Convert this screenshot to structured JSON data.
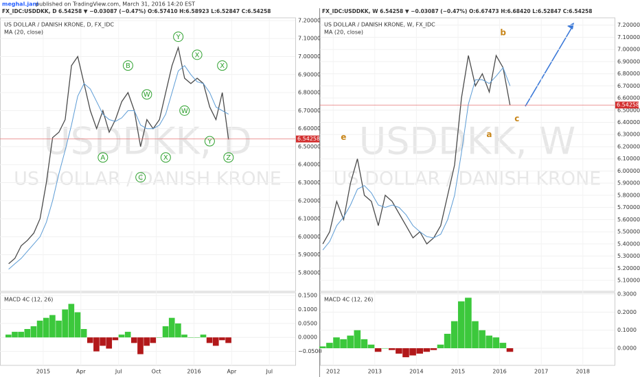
{
  "author": "meghal.jani",
  "published": "published on TradingView.com, March 31, 2016 14:20 EST",
  "chart_data": [
    {
      "type": "line",
      "header": "FX_IDC:USDDKK, D 6.54258 ▼ −0.03087 (−0.47%) O:6.57410 H:6.58923 L:6.52847 C:6.54258",
      "watermark_symbol": "USDDKK, D",
      "watermark_name": "US DOLLAR / DANISH KRONE",
      "categories": [
        null,
        null,
        null,
        null,
        null,
        null,
        "2015",
        null,
        null,
        null,
        null,
        null,
        "Apr",
        null,
        null,
        null,
        null,
        null,
        "Jul",
        null,
        null,
        null,
        null,
        null,
        "Oct",
        null,
        null,
        null,
        null,
        null,
        "2016",
        null,
        null,
        null,
        null,
        null,
        "Apr",
        null,
        null,
        null,
        null,
        null,
        "Jul",
        null,
        null,
        null
      ],
      "series": [
        {
          "name": "US DOLLAR / DANISH KRONE, D, FX_IDC",
          "color": "#4a4a4a",
          "values": [
            5.85,
            5.88,
            5.95,
            5.98,
            6.02,
            6.1,
            6.3,
            6.55,
            6.58,
            6.65,
            6.95,
            7.0,
            6.85,
            6.7,
            6.6,
            6.7,
            6.58,
            6.65,
            6.75,
            6.8,
            6.7,
            6.5,
            6.65,
            6.6,
            6.65,
            6.8,
            6.95,
            7.05,
            6.88,
            6.85,
            6.88,
            6.85,
            6.72,
            6.65,
            6.8,
            6.54,
            null,
            null,
            null,
            null,
            null,
            null,
            null,
            null,
            null,
            null
          ]
        },
        {
          "name": "MA (20, close)",
          "color": "#5b9bd5",
          "values": [
            5.82,
            5.85,
            5.88,
            5.92,
            5.96,
            6.0,
            6.08,
            6.2,
            6.35,
            6.48,
            6.62,
            6.78,
            6.85,
            6.82,
            6.75,
            6.68,
            6.65,
            6.64,
            6.66,
            6.7,
            6.7,
            6.62,
            6.6,
            6.6,
            6.62,
            6.68,
            6.8,
            6.92,
            6.95,
            6.9,
            6.86,
            6.85,
            6.8,
            6.72,
            6.7,
            6.68,
            null,
            null,
            null,
            null,
            null,
            null,
            null,
            null,
            null,
            null
          ]
        },
        {
          "name": "MACD 4C (12, 26)",
          "type": "bar",
          "axis": "y2",
          "color": "#3cc83c",
          "negative_color": "#b2181a",
          "values": [
            0.01,
            0.02,
            0.02,
            0.03,
            0.04,
            0.06,
            0.07,
            0.08,
            0.06,
            0.1,
            0.12,
            0.09,
            0.03,
            -0.02,
            -0.05,
            -0.03,
            -0.04,
            -0.01,
            0.01,
            0.02,
            -0.02,
            -0.06,
            -0.03,
            -0.02,
            0.0,
            0.04,
            0.07,
            0.05,
            0.01,
            0.0,
            0.0,
            0.01,
            -0.02,
            -0.03,
            -0.01,
            -0.02,
            null,
            null,
            null,
            null,
            null,
            null,
            null,
            null,
            null,
            null
          ]
        }
      ],
      "ylim": [
        5.697,
        7.215
      ],
      "yticks": [
        {
          "value": 5.8,
          "label": "5.80000"
        },
        {
          "value": 5.9,
          "label": "5.90000"
        },
        {
          "value": 6.0,
          "label": "6.00000"
        },
        {
          "value": 6.1,
          "label": "6.10000"
        },
        {
          "value": 6.2,
          "label": "6.20000"
        },
        {
          "value": 6.3,
          "label": "6.30000"
        },
        {
          "value": 6.4,
          "label": "6.40000"
        },
        {
          "value": 6.5,
          "label": "6.50000"
        },
        {
          "value": 6.6,
          "label": "6.60000"
        },
        {
          "value": 6.7,
          "label": "6.70000"
        },
        {
          "value": 6.8,
          "label": "6.80000"
        },
        {
          "value": 6.9,
          "label": "6.90000"
        },
        {
          "value": 7.0,
          "label": "7.00000"
        },
        {
          "value": 7.1,
          "label": "7.10000"
        },
        {
          "value": 7.2,
          "label": "7.20000"
        }
      ],
      "y2lim": [
        -0.1,
        0.16
      ],
      "y2ticks": [
        {
          "value": 0.15,
          "label": "0.1500"
        },
        {
          "value": 0.1,
          "label": "0.1000"
        },
        {
          "value": 0.05,
          "label": "0.0500"
        },
        {
          "value": 0,
          "label": "0.0000"
        },
        {
          "value": -0.05,
          "label": "−0.0500"
        }
      ],
      "last_price": 6.54258,
      "annotation_style": "circle",
      "annotation_color": "#2ca02c",
      "annotations": [
        {
          "label": "A",
          "at": 15,
          "y": 6.44
        },
        {
          "label": "B",
          "at": 19,
          "y": 6.95
        },
        {
          "label": "C",
          "at": 21,
          "y": 6.33
        },
        {
          "label": "W",
          "at": 22,
          "y": 6.79
        },
        {
          "label": "X",
          "at": 25,
          "y": 6.44
        },
        {
          "label": "Y",
          "at": 27,
          "y": 7.11
        },
        {
          "label": "W",
          "at": 28,
          "y": 6.7
        },
        {
          "label": "X",
          "at": 30,
          "y": 7.01
        },
        {
          "label": "Y",
          "at": 32,
          "y": 6.53
        },
        {
          "label": "X",
          "at": 34,
          "y": 6.95
        },
        {
          "label": "Z",
          "at": 35,
          "y": 6.44
        }
      ]
    },
    {
      "type": "line",
      "header": "FX_IDC:USDDKK, W 6.54258 ▼ −0.03087 (−0.47%) O:6.67473 H:6.68420 L:6.52847 C:6.54258",
      "watermark_symbol": "USDDKK, W",
      "watermark_name": "US DOLLAR / DANISH KRONE",
      "categories": [
        null,
        null,
        "2012",
        null,
        null,
        null,
        null,
        null,
        "2013",
        null,
        null,
        null,
        null,
        null,
        "2014",
        null,
        null,
        null,
        null,
        null,
        "2015",
        null,
        null,
        null,
        null,
        null,
        "2016",
        null,
        null,
        null,
        null,
        null,
        "2017",
        null,
        null,
        null,
        null,
        null,
        "2018",
        null,
        null,
        null
      ],
      "series": [
        {
          "name": "US DOLLAR / DANISH KRONE, W, FX_IDC",
          "color": "#4a4a4a",
          "values": [
            5.4,
            5.5,
            5.75,
            5.6,
            5.9,
            6.1,
            5.8,
            5.75,
            5.55,
            5.8,
            5.75,
            5.65,
            5.55,
            5.45,
            5.5,
            5.4,
            5.45,
            5.55,
            5.8,
            6.05,
            6.6,
            6.95,
            6.7,
            6.8,
            6.65,
            6.95,
            6.85,
            6.54,
            null,
            null,
            null,
            null,
            null,
            null,
            null,
            null,
            null,
            null,
            null,
            null,
            null,
            null
          ]
        },
        {
          "name": "MA (20, close)",
          "color": "#5b9bd5",
          "values": [
            5.35,
            5.42,
            5.55,
            5.62,
            5.72,
            5.85,
            5.88,
            5.82,
            5.72,
            5.7,
            5.72,
            5.7,
            5.64,
            5.55,
            5.5,
            5.46,
            5.45,
            5.48,
            5.6,
            5.8,
            6.15,
            6.55,
            6.75,
            6.75,
            6.72,
            6.78,
            6.85,
            6.7,
            null,
            null,
            null,
            null,
            null,
            null,
            null,
            null,
            null,
            null,
            null,
            null,
            null,
            null
          ]
        },
        {
          "name": "MACD 4C (12, 26)",
          "type": "bar",
          "axis": "y2",
          "color": "#3cc83c",
          "negative_color": "#b2181a",
          "values": [
            0.01,
            0.03,
            0.06,
            0.05,
            0.07,
            0.1,
            0.05,
            0.02,
            -0.02,
            0.0,
            -0.01,
            -0.03,
            -0.05,
            -0.04,
            -0.03,
            -0.02,
            -0.01,
            0.02,
            0.08,
            0.15,
            0.26,
            0.28,
            0.15,
            0.1,
            0.07,
            0.06,
            0.03,
            -0.02,
            null,
            null,
            null,
            null,
            null,
            null,
            null,
            null,
            null,
            null,
            null,
            null,
            null,
            null
          ]
        }
      ],
      "ylim": [
        5.01,
        7.26
      ],
      "yticks": [
        {
          "value": 5.1,
          "label": "5.10000"
        },
        {
          "value": 5.2,
          "label": "5.20000"
        },
        {
          "value": 5.3,
          "label": "5.30000"
        },
        {
          "value": 5.4,
          "label": "5.40000"
        },
        {
          "value": 5.5,
          "label": "5.50000"
        },
        {
          "value": 5.6,
          "label": "5.60000"
        },
        {
          "value": 5.7,
          "label": "5.70000"
        },
        {
          "value": 5.8,
          "label": "5.80000"
        },
        {
          "value": 5.9,
          "label": "5.90000"
        },
        {
          "value": 6.0,
          "label": "6.00000"
        },
        {
          "value": 6.1,
          "label": "6.10000"
        },
        {
          "value": 6.2,
          "label": "6.20000"
        },
        {
          "value": 6.3,
          "label": "6.30000"
        },
        {
          "value": 6.4,
          "label": "6.40000"
        },
        {
          "value": 6.5,
          "label": "6.50000"
        },
        {
          "value": 6.6,
          "label": "6.60000"
        },
        {
          "value": 6.7,
          "label": "6.70000"
        },
        {
          "value": 6.8,
          "label": "6.80000"
        },
        {
          "value": 6.9,
          "label": "6.90000"
        },
        {
          "value": 7.0,
          "label": "7.00000"
        },
        {
          "value": 7.1,
          "label": "7.10000"
        },
        {
          "value": 7.2,
          "label": "7.20000"
        }
      ],
      "y2lim": [
        -0.095,
        0.308
      ],
      "y2ticks": [
        {
          "value": 0.3,
          "label": "0.3000"
        },
        {
          "value": 0.2,
          "label": "0.2000"
        },
        {
          "value": 0.1,
          "label": "0.1000"
        },
        {
          "value": 0,
          "label": "0.0000"
        }
      ],
      "last_price": 6.54258,
      "annotation_style": "plain",
      "annotation_color": "#c8861a",
      "annotations": [
        {
          "label": "e",
          "at": 3,
          "y": 6.28
        },
        {
          "label": "a",
          "at": 24,
          "y": 6.3
        },
        {
          "label": "b",
          "at": 26,
          "y": 7.14
        },
        {
          "label": "c",
          "at": 28,
          "y": 6.43
        }
      ]
    }
  ]
}
